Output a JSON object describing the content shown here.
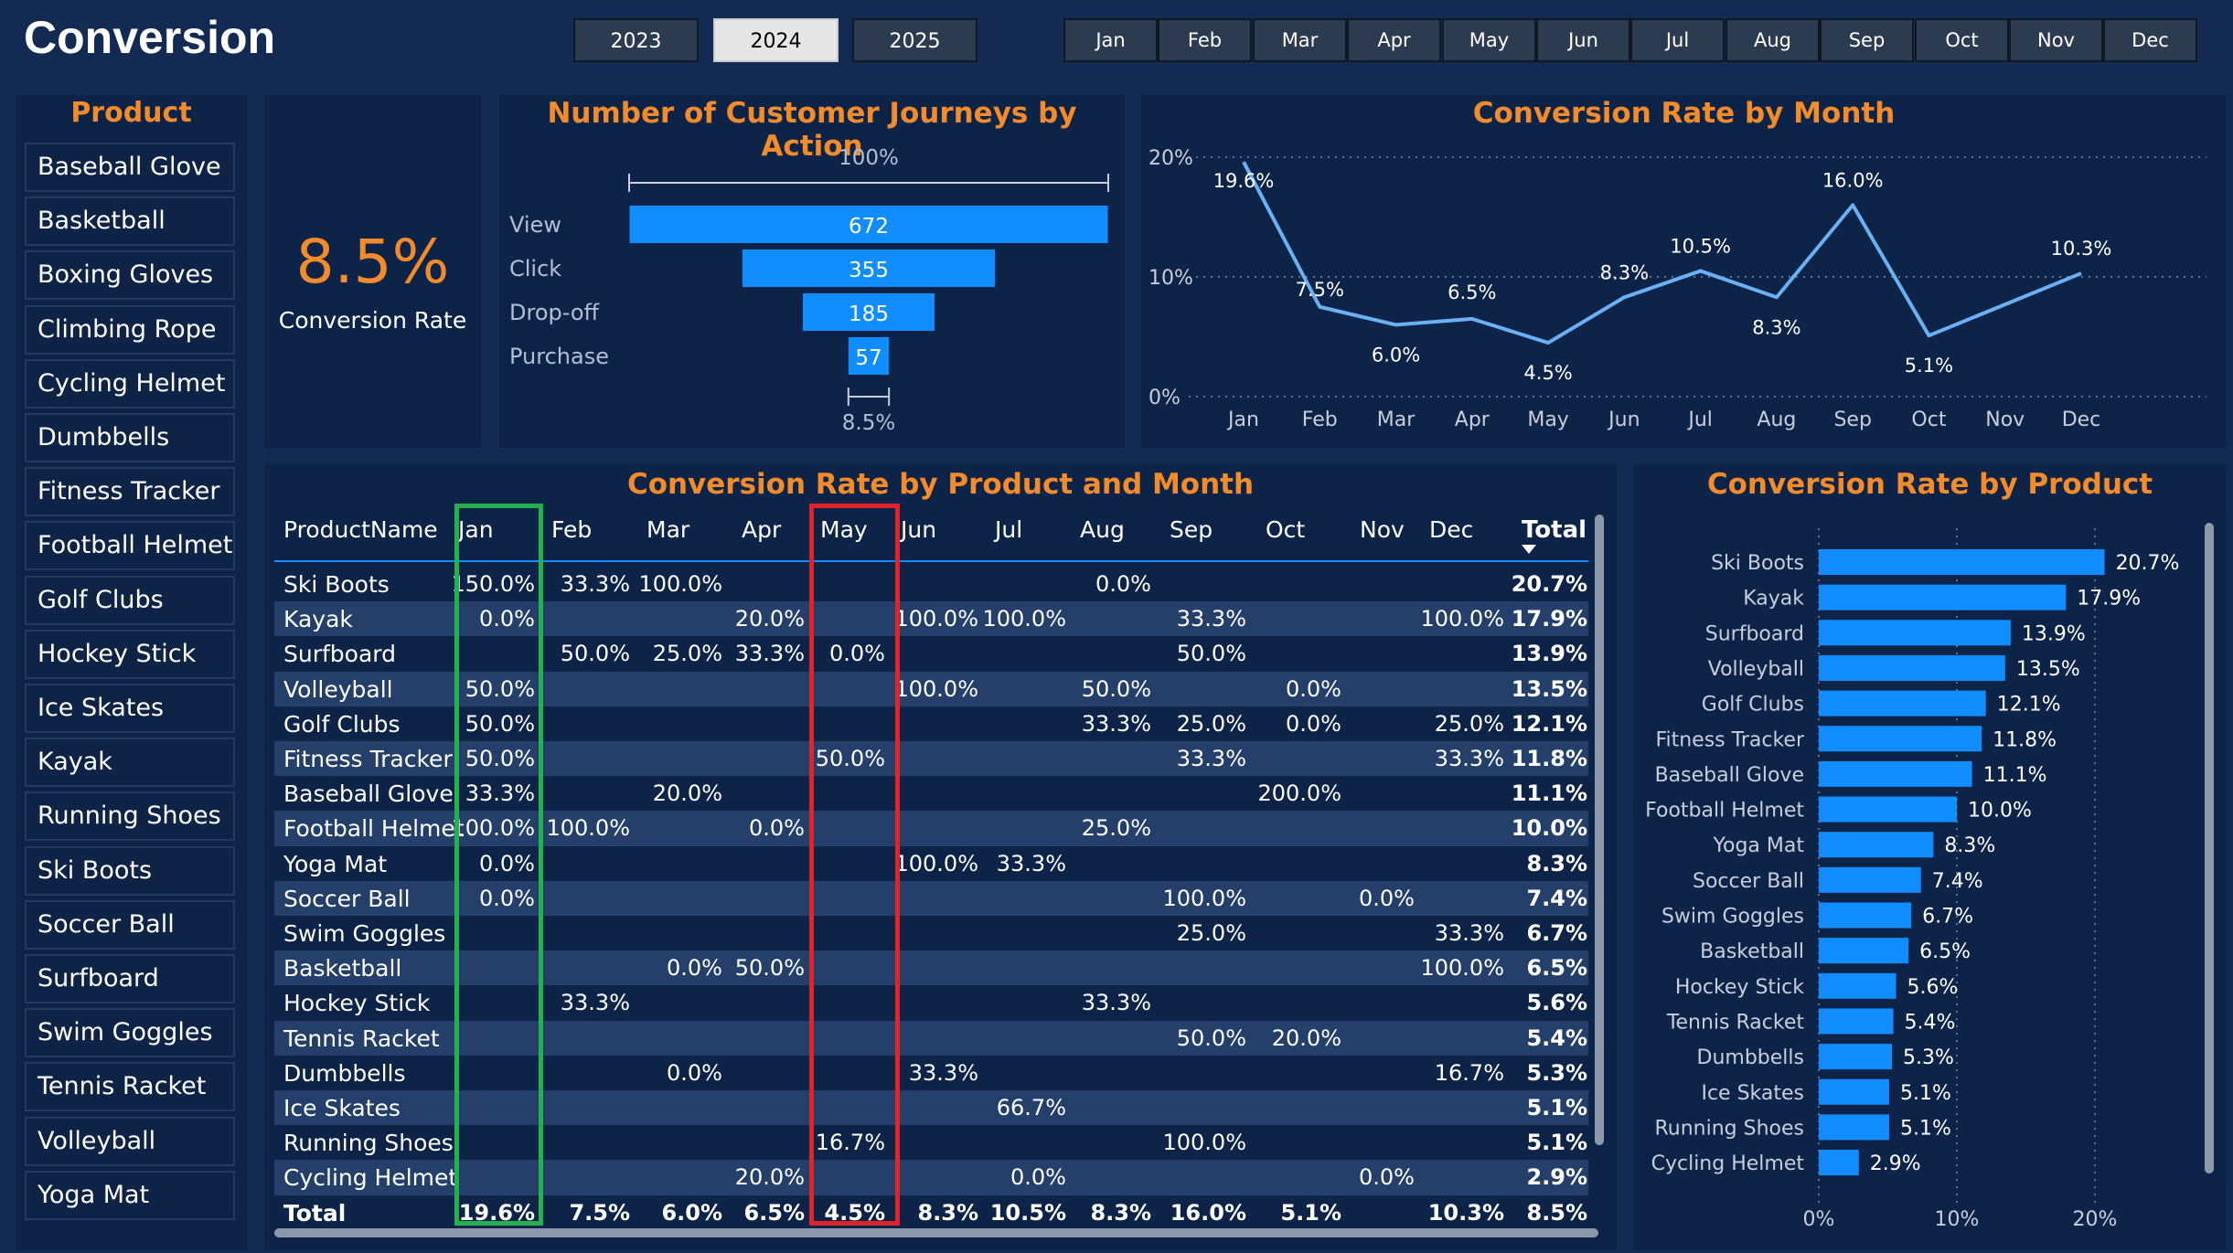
{
  "header": {
    "title": "Conversion",
    "years": [
      "2023",
      "2024",
      "2025"
    ],
    "selected_year": "2024",
    "months": [
      "Jan",
      "Feb",
      "Mar",
      "Apr",
      "May",
      "Jun",
      "Jul",
      "Aug",
      "Sep",
      "Oct",
      "Nov",
      "Dec"
    ]
  },
  "slicer": {
    "title": "Product",
    "items": [
      "Baseball Glove",
      "Basketball",
      "Boxing Gloves",
      "Climbing Rope",
      "Cycling Helmet",
      "Dumbbells",
      "Fitness Tracker",
      "Football Helmet",
      "Golf Clubs",
      "Hockey Stick",
      "Ice Skates",
      "Kayak",
      "Running Shoes",
      "Ski Boots",
      "Soccer Ball",
      "Surfboard",
      "Swim Goggles",
      "Tennis Racket",
      "Volleyball",
      "Yoga Mat"
    ]
  },
  "kpi": {
    "value": "8.5%",
    "label": "Conversion Rate"
  },
  "funnel": {
    "title": "Number of Customer Journeys by Action",
    "top_label": "100%",
    "bottom_label": "8.5%",
    "stages": [
      {
        "label": "View",
        "value": 672
      },
      {
        "label": "Click",
        "value": 355
      },
      {
        "label": "Drop-off",
        "value": 185
      },
      {
        "label": "Purchase",
        "value": 57
      }
    ]
  },
  "line_chart": {
    "title": "Conversion Rate by Month",
    "y_ticks": [
      "20%",
      "10%",
      "0%"
    ]
  },
  "matrix": {
    "title": "Conversion Rate by Product and Month",
    "columns": [
      "ProductName",
      "Jan",
      "Feb",
      "Mar",
      "Apr",
      "May",
      "Jun",
      "Jul",
      "Aug",
      "Sep",
      "Oct",
      "Nov",
      "Dec",
      "Total"
    ],
    "rows": [
      [
        "Ski Boots",
        "150.0%",
        "33.3%",
        "100.0%",
        "",
        "",
        "",
        "",
        "0.0%",
        "",
        "",
        "",
        "",
        "20.7%"
      ],
      [
        "Kayak",
        "0.0%",
        "",
        "",
        "20.0%",
        "",
        "100.0%",
        "100.0%",
        "",
        "33.3%",
        "",
        "",
        "100.0%",
        "17.9%"
      ],
      [
        "Surfboard",
        "",
        "50.0%",
        "25.0%",
        "33.3%",
        "0.0%",
        "",
        "",
        "",
        "50.0%",
        "",
        "",
        "",
        "13.9%"
      ],
      [
        "Volleyball",
        "50.0%",
        "",
        "",
        "",
        "",
        "100.0%",
        "",
        "50.0%",
        "",
        "0.0%",
        "",
        "",
        "13.5%"
      ],
      [
        "Golf Clubs",
        "50.0%",
        "",
        "",
        "",
        "",
        "",
        "",
        "33.3%",
        "25.0%",
        "0.0%",
        "",
        "25.0%",
        "12.1%"
      ],
      [
        "Fitness Tracker",
        "50.0%",
        "",
        "",
        "",
        "50.0%",
        "",
        "",
        "",
        "33.3%",
        "",
        "",
        "33.3%",
        "11.8%"
      ],
      [
        "Baseball Glove",
        "33.3%",
        "",
        "20.0%",
        "",
        "",
        "",
        "",
        "",
        "",
        "200.0%",
        "",
        "",
        "11.1%"
      ],
      [
        "Football Helmet",
        "100.0%",
        "100.0%",
        "",
        "0.0%",
        "",
        "",
        "",
        "25.0%",
        "",
        "",
        "",
        "",
        "10.0%"
      ],
      [
        "Yoga Mat",
        "0.0%",
        "",
        "",
        "",
        "",
        "100.0%",
        "33.3%",
        "",
        "",
        "",
        "",
        "",
        "8.3%"
      ],
      [
        "Soccer Ball",
        "0.0%",
        "",
        "",
        "",
        "",
        "",
        "",
        "",
        "100.0%",
        "",
        "0.0%",
        "",
        "7.4%"
      ],
      [
        "Swim Goggles",
        "",
        "",
        "",
        "",
        "",
        "",
        "",
        "",
        "25.0%",
        "",
        "",
        "33.3%",
        "6.7%"
      ],
      [
        "Basketball",
        "",
        "",
        "0.0%",
        "50.0%",
        "",
        "",
        "",
        "",
        "",
        "",
        "",
        "100.0%",
        "6.5%"
      ],
      [
        "Hockey Stick",
        "",
        "33.3%",
        "",
        "",
        "",
        "",
        "",
        "33.3%",
        "",
        "",
        "",
        "",
        "5.6%"
      ],
      [
        "Tennis Racket",
        "",
        "",
        "",
        "",
        "",
        "",
        "",
        "",
        "50.0%",
        "20.0%",
        "",
        "",
        "5.4%"
      ],
      [
        "Dumbbells",
        "",
        "",
        "0.0%",
        "",
        "",
        "33.3%",
        "",
        "",
        "",
        "",
        "",
        "16.7%",
        "5.3%"
      ],
      [
        "Ice Skates",
        "",
        "",
        "",
        "",
        "",
        "",
        "66.7%",
        "",
        "",
        "",
        "",
        "",
        "5.1%"
      ],
      [
        "Running Shoes",
        "",
        "",
        "",
        "",
        "16.7%",
        "",
        "",
        "",
        "100.0%",
        "",
        "",
        "",
        "5.1%"
      ],
      [
        "Cycling Helmet",
        "",
        "",
        "",
        "20.0%",
        "",
        "",
        "0.0%",
        "",
        "",
        "",
        "0.0%",
        "",
        "2.9%"
      ]
    ],
    "total_row": [
      "Total",
      "19.6%",
      "7.5%",
      "6.0%",
      "6.5%",
      "4.5%",
      "8.3%",
      "10.5%",
      "8.3%",
      "16.0%",
      "5.1%",
      "",
      "10.3%",
      "8.5%"
    ]
  },
  "bar_chart": {
    "title": "Conversion Rate by Product",
    "x_ticks": [
      "0%",
      "10%",
      "20%"
    ]
  },
  "colors": {
    "background": "#132a52",
    "panel": "#0d2347",
    "accent_orange": "#f28b2c",
    "bar_blue": "#118dff",
    "line_blue": "#6ab0f5",
    "highlight_green": "#22b14c",
    "highlight_red": "#e0242c"
  },
  "chart_data": [
    {
      "type": "bar",
      "title": "Number of Customer Journeys by Action",
      "categories": [
        "View",
        "Click",
        "Drop-off",
        "Purchase"
      ],
      "values": [
        672,
        355,
        185,
        57
      ]
    },
    {
      "type": "line",
      "title": "Conversion Rate by Month",
      "x": [
        "Jan",
        "Feb",
        "Mar",
        "Apr",
        "May",
        "Jun",
        "Jul",
        "Aug",
        "Sep",
        "Oct",
        "Nov",
        "Dec"
      ],
      "series": [
        {
          "values": [
            19.6,
            7.5,
            6.0,
            6.5,
            4.5,
            8.3,
            10.5,
            8.3,
            16.0,
            5.1,
            null,
            10.3
          ],
          "labels": [
            "19.6%",
            "7.5%",
            "6.0%",
            "6.5%",
            "4.5%",
            "8.3%",
            "10.5%",
            "8.3%",
            "16.0%",
            "5.1%",
            "",
            "10.3%"
          ]
        }
      ],
      "ylim": [
        0,
        20
      ]
    },
    {
      "type": "bar",
      "title": "Conversion Rate by Product",
      "categories": [
        "Ski Boots",
        "Kayak",
        "Surfboard",
        "Volleyball",
        "Golf Clubs",
        "Fitness Tracker",
        "Baseball Glove",
        "Football Helmet",
        "Yoga Mat",
        "Soccer Ball",
        "Swim Goggles",
        "Basketball",
        "Hockey Stick",
        "Tennis Racket",
        "Dumbbells",
        "Ice Skates",
        "Running Shoes",
        "Cycling Helmet"
      ],
      "values": [
        20.7,
        17.9,
        13.9,
        13.5,
        12.1,
        11.8,
        11.1,
        10.0,
        8.3,
        7.4,
        6.7,
        6.5,
        5.6,
        5.4,
        5.3,
        5.1,
        5.1,
        2.9
      ],
      "labels": [
        "20.7%",
        "17.9%",
        "13.9%",
        "13.5%",
        "12.1%",
        "11.8%",
        "11.1%",
        "10.0%",
        "8.3%",
        "7.4%",
        "6.7%",
        "6.5%",
        "5.6%",
        "5.4%",
        "5.3%",
        "5.1%",
        "5.1%",
        "2.9%"
      ],
      "xlim": [
        0,
        20
      ]
    }
  ]
}
